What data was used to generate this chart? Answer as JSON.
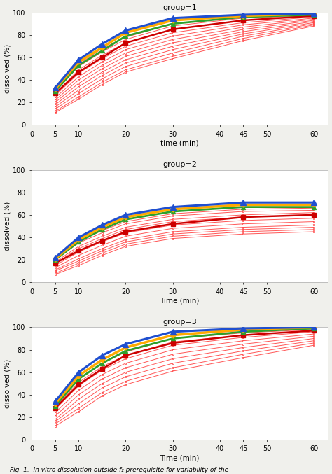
{
  "time_points": [
    5,
    10,
    15,
    20,
    30,
    45,
    60
  ],
  "groups": [
    {
      "title": "group=1",
      "xlabel": "time (min)",
      "blue_mean": [
        33,
        58,
        72,
        84,
        95,
        98,
        99
      ],
      "orange_mean": [
        32,
        56,
        69,
        82,
        93,
        97,
        99
      ],
      "green_mean": [
        30,
        53,
        66,
        79,
        90,
        96,
        98
      ],
      "red_mean": [
        28,
        47,
        60,
        73,
        85,
        93,
        97
      ],
      "red_profiles": [
        [
          32,
          54,
          68,
          78,
          90,
          96,
          98
        ],
        [
          30,
          52,
          65,
          76,
          88,
          95,
          97
        ],
        [
          28,
          49,
          62,
          73,
          85,
          93,
          97
        ],
        [
          26,
          46,
          59,
          70,
          82,
          91,
          96
        ],
        [
          24,
          43,
          56,
          67,
          79,
          89,
          95
        ],
        [
          22,
          40,
          53,
          64,
          76,
          87,
          94
        ],
        [
          20,
          37,
          50,
          61,
          73,
          85,
          93
        ],
        [
          18,
          34,
          47,
          58,
          70,
          83,
          92
        ],
        [
          16,
          31,
          44,
          55,
          67,
          81,
          91
        ],
        [
          14,
          28,
          41,
          52,
          64,
          79,
          90
        ],
        [
          12,
          25,
          38,
          49,
          61,
          77,
          89
        ],
        [
          11,
          23,
          36,
          47,
          59,
          75,
          88
        ]
      ]
    },
    {
      "title": "group=2",
      "xlabel": "Time (min)",
      "blue_mean": [
        22,
        40,
        51,
        60,
        67,
        71,
        71
      ],
      "orange_mean": [
        21,
        38,
        49,
        58,
        65,
        69,
        69
      ],
      "green_mean": [
        20,
        36,
        47,
        56,
        63,
        67,
        67
      ],
      "red_mean": [
        17,
        28,
        37,
        45,
        52,
        58,
        60
      ],
      "red_profiles": [
        [
          21,
          37,
          46,
          54,
          61,
          65,
          66
        ],
        [
          20,
          35,
          44,
          52,
          59,
          63,
          64
        ],
        [
          18,
          32,
          41,
          49,
          56,
          60,
          62
        ],
        [
          17,
          30,
          39,
          47,
          54,
          58,
          60
        ],
        [
          15,
          27,
          36,
          44,
          51,
          55,
          57
        ],
        [
          13,
          24,
          33,
          41,
          48,
          52,
          54
        ],
        [
          11,
          21,
          30,
          38,
          45,
          49,
          51
        ],
        [
          10,
          19,
          28,
          36,
          43,
          47,
          49
        ],
        [
          8,
          17,
          26,
          34,
          41,
          45,
          47
        ],
        [
          7,
          15,
          24,
          32,
          39,
          43,
          45
        ]
      ]
    },
    {
      "title": "group=3",
      "xlabel": "Time (min)",
      "blue_mean": [
        34,
        60,
        75,
        85,
        96,
        99,
        100
      ],
      "orange_mean": [
        32,
        57,
        71,
        82,
        93,
        98,
        100
      ],
      "green_mean": [
        30,
        54,
        68,
        79,
        90,
        96,
        99
      ],
      "red_mean": [
        28,
        49,
        63,
        75,
        86,
        93,
        97
      ],
      "red_profiles": [
        [
          33,
          57,
          72,
          82,
          93,
          97,
          99
        ],
        [
          31,
          54,
          68,
          78,
          90,
          95,
          98
        ],
        [
          29,
          51,
          65,
          75,
          87,
          93,
          97
        ],
        [
          27,
          48,
          62,
          72,
          84,
          91,
          96
        ],
        [
          24,
          44,
          58,
          68,
          80,
          88,
          94
        ],
        [
          21,
          40,
          54,
          64,
          76,
          85,
          92
        ],
        [
          18,
          36,
          50,
          60,
          72,
          82,
          90
        ],
        [
          16,
          32,
          46,
          56,
          68,
          79,
          88
        ],
        [
          14,
          28,
          42,
          52,
          64,
          76,
          86
        ],
        [
          12,
          25,
          39,
          49,
          61,
          73,
          84
        ]
      ]
    }
  ],
  "blue_color": "#1f4fcf",
  "orange_color": "#ffaa00",
  "green_color": "#2ca02c",
  "red_mean_color": "#cc0000",
  "red_profile_color": "#ff4444",
  "bg_color": "#ffffff",
  "fig_bg_color": "#f0f0ec",
  "ylabel": "dissolved (%)",
  "fig_caption": "Fig. 1.  In vitro dissolution outside f₂ prerequisite for variability of the"
}
